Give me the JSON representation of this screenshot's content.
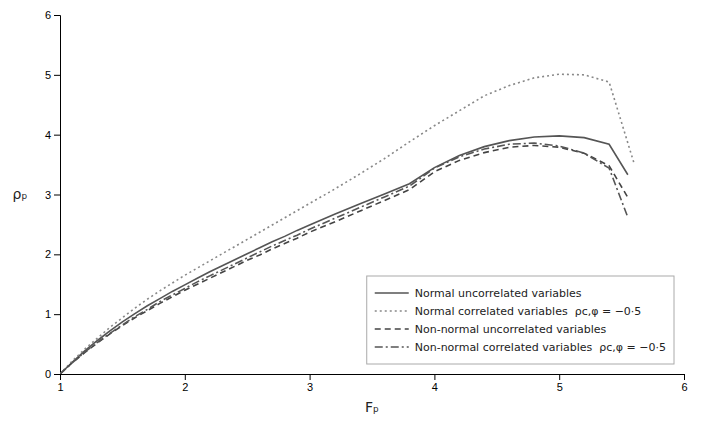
{
  "chart_data": {
    "type": "line",
    "xlabel": "Fₚ",
    "ylabel": "ρₚ",
    "xlim": [
      1,
      6
    ],
    "ylim": [
      0,
      6
    ],
    "xticks": [
      1,
      2,
      3,
      4,
      5,
      6
    ],
    "yticks": [
      0,
      1,
      2,
      3,
      4,
      5,
      6
    ],
    "grid": false,
    "legend": "lower right",
    "series": [
      {
        "name": "Normal uncorrelated variables",
        "line_style": "solid",
        "color": "#555555",
        "x": [
          1.0,
          1.1,
          1.2,
          1.3,
          1.4,
          1.5,
          1.6,
          1.7,
          1.8,
          1.9,
          2.0,
          2.1,
          2.2,
          2.3,
          2.4,
          2.5,
          2.6,
          2.7,
          2.8,
          2.9,
          3.0,
          3.2,
          3.4,
          3.6,
          3.8,
          4.0,
          4.2,
          4.4,
          4.6,
          4.8,
          5.0,
          5.2,
          5.4,
          5.55
        ],
        "values": [
          0.0,
          0.2,
          0.39,
          0.56,
          0.72,
          0.87,
          1.01,
          1.14,
          1.26,
          1.38,
          1.49,
          1.6,
          1.71,
          1.81,
          1.91,
          2.01,
          2.11,
          2.21,
          2.3,
          2.4,
          2.49,
          2.67,
          2.84,
          3.01,
          3.18,
          3.45,
          3.65,
          3.8,
          3.9,
          3.96,
          3.98,
          3.95,
          3.84,
          3.33
        ]
      },
      {
        "name": "Normal correlated variables  ρc,φ = −0·5",
        "line_style": "dotted",
        "color": "#888888",
        "x": [
          1.0,
          1.1,
          1.2,
          1.3,
          1.4,
          1.5,
          1.6,
          1.7,
          1.8,
          1.9,
          2.0,
          2.1,
          2.2,
          2.3,
          2.4,
          2.5,
          2.6,
          2.7,
          2.8,
          2.9,
          3.0,
          3.2,
          3.4,
          3.6,
          3.8,
          4.0,
          4.2,
          4.4,
          4.6,
          4.8,
          5.0,
          5.2,
          5.4,
          5.6
        ],
        "values": [
          0.0,
          0.22,
          0.42,
          0.6,
          0.78,
          0.94,
          1.1,
          1.25,
          1.39,
          1.52,
          1.65,
          1.77,
          1.89,
          2.01,
          2.13,
          2.25,
          2.37,
          2.49,
          2.61,
          2.73,
          2.85,
          3.09,
          3.34,
          3.6,
          3.88,
          4.15,
          4.4,
          4.65,
          4.82,
          4.95,
          5.01,
          5.0,
          4.88,
          3.52
        ]
      },
      {
        "name": "Non-normal uncorrelated variables",
        "line_style": "dashed",
        "color": "#444444",
        "x": [
          1.0,
          1.1,
          1.2,
          1.3,
          1.4,
          1.5,
          1.6,
          1.7,
          1.8,
          1.9,
          2.0,
          2.1,
          2.2,
          2.3,
          2.4,
          2.5,
          2.6,
          2.7,
          2.8,
          2.9,
          3.0,
          3.2,
          3.4,
          3.6,
          3.8,
          4.0,
          4.2,
          4.4,
          4.6,
          4.8,
          5.0,
          5.2,
          5.4,
          5.55
        ],
        "values": [
          0.0,
          0.19,
          0.36,
          0.52,
          0.67,
          0.81,
          0.94,
          1.06,
          1.18,
          1.29,
          1.4,
          1.5,
          1.6,
          1.7,
          1.8,
          1.9,
          1.99,
          2.09,
          2.18,
          2.27,
          2.37,
          2.54,
          2.72,
          2.9,
          3.08,
          3.38,
          3.57,
          3.7,
          3.79,
          3.82,
          3.79,
          3.69,
          3.48,
          2.95
        ]
      },
      {
        "name": "Non-normal correlated variables  ρc,φ = −0·5",
        "line_style": "dashdot",
        "color": "#555555",
        "x": [
          1.0,
          1.1,
          1.2,
          1.3,
          1.4,
          1.5,
          1.6,
          1.7,
          1.8,
          1.9,
          2.0,
          2.1,
          2.2,
          2.3,
          2.4,
          2.5,
          2.6,
          2.7,
          2.8,
          2.9,
          3.0,
          3.2,
          3.4,
          3.6,
          3.8,
          4.0,
          4.2,
          4.4,
          4.6,
          4.8,
          5.0,
          5.2,
          5.4,
          5.55
        ],
        "values": [
          0.0,
          0.19,
          0.37,
          0.53,
          0.68,
          0.82,
          0.96,
          1.08,
          1.21,
          1.32,
          1.43,
          1.54,
          1.64,
          1.74,
          1.84,
          1.94,
          2.04,
          2.14,
          2.23,
          2.32,
          2.42,
          2.6,
          2.78,
          2.96,
          3.14,
          3.44,
          3.63,
          3.76,
          3.84,
          3.86,
          3.81,
          3.69,
          3.44,
          2.62
        ]
      }
    ]
  }
}
